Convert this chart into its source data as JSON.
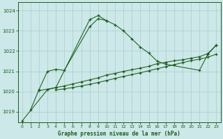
{
  "background_color": "#cce8e8",
  "plot_bg_color": "#cce8e8",
  "grid_color": "#aacccc",
  "line_color": "#1a5c1a",
  "xlabel": "Graphe pression niveau de la mer (hPa)",
  "ylim": [
    1018.5,
    1024.4
  ],
  "xlim": [
    -0.5,
    23.5
  ],
  "yticks": [
    1019,
    1020,
    1021,
    1022,
    1023,
    1024
  ],
  "xticks": [
    0,
    1,
    2,
    3,
    4,
    5,
    6,
    7,
    8,
    9,
    10,
    11,
    12,
    13,
    14,
    15,
    16,
    17,
    18,
    19,
    20,
    21,
    22,
    23
  ],
  "series1_x": [
    1,
    2,
    3,
    4,
    5,
    8,
    9,
    10,
    11,
    12,
    13,
    14,
    15,
    16,
    17,
    21,
    22,
    23
  ],
  "series1_y": [
    1019.1,
    1020.1,
    1021.0,
    1021.1,
    1021.05,
    1023.2,
    1023.6,
    1023.5,
    1023.3,
    1023.0,
    1022.6,
    1022.2,
    1021.9,
    1021.5,
    1021.35,
    1021.05,
    1021.85,
    1022.3
  ],
  "series2_x": [
    0,
    3,
    4,
    8,
    9,
    10
  ],
  "series2_y": [
    1018.55,
    1020.1,
    1020.2,
    1023.55,
    1023.75,
    1023.5
  ],
  "series3_x": [
    2,
    4,
    5,
    6,
    7,
    8,
    9,
    10,
    11,
    12,
    13,
    14,
    15,
    16,
    17,
    18,
    19,
    20,
    21,
    22,
    23
  ],
  "series3_y": [
    1020.05,
    1020.2,
    1020.28,
    1020.38,
    1020.48,
    1020.58,
    1020.68,
    1020.82,
    1020.9,
    1021.0,
    1021.08,
    1021.16,
    1021.25,
    1021.38,
    1021.45,
    1021.52,
    1021.57,
    1021.65,
    1021.72,
    1021.88,
    1022.3
  ],
  "series4_x": [
    4,
    5,
    6,
    7,
    8,
    9,
    10,
    11,
    12,
    13,
    14,
    15,
    16,
    17,
    18,
    19,
    20,
    21,
    22,
    23
  ],
  "series4_y": [
    1020.08,
    1020.14,
    1020.2,
    1020.28,
    1020.36,
    1020.45,
    1020.55,
    1020.65,
    1020.75,
    1020.84,
    1020.93,
    1021.03,
    1021.13,
    1021.23,
    1021.33,
    1021.43,
    1021.53,
    1021.6,
    1021.7,
    1021.85
  ]
}
